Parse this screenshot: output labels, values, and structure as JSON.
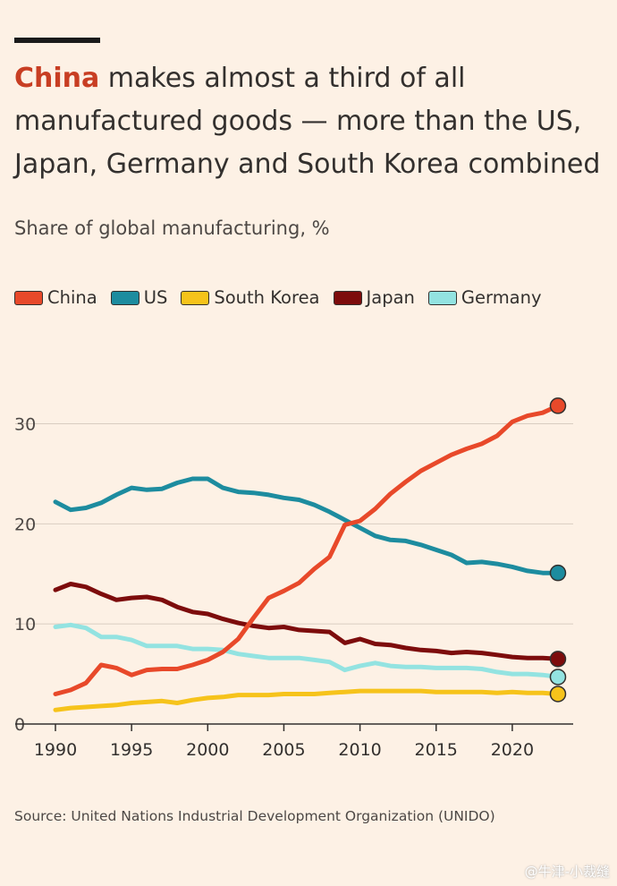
{
  "title_highlight": "China",
  "title_rest": " makes almost a third of all manufactured goods — more than the US, Japan, Germany and South Korea combined",
  "source": "Source: United Nations Industrial Development Organization (UNIDO)",
  "watermark": "@牛津-小裁缝",
  "chart_data": {
    "type": "line",
    "title": "China makes almost a third of all manufactured goods — more than the US, Japan, Germany and South Korea combined",
    "subtitle": "Share of global manufacturing, %",
    "xlabel": "",
    "ylabel": "",
    "xlim": [
      1990,
      2024
    ],
    "ylim": [
      0,
      33
    ],
    "xticks": [
      1990,
      1995,
      2000,
      2005,
      2010,
      2015,
      2020
    ],
    "yticks": [
      0,
      10,
      20,
      30
    ],
    "grid": "horizontal",
    "legend_position": "top",
    "x": [
      1990,
      1991,
      1992,
      1993,
      1994,
      1995,
      1996,
      1997,
      1998,
      1999,
      2000,
      2001,
      2002,
      2003,
      2004,
      2005,
      2006,
      2007,
      2008,
      2009,
      2010,
      2011,
      2012,
      2013,
      2014,
      2015,
      2016,
      2017,
      2018,
      2019,
      2020,
      2021,
      2022,
      2023
    ],
    "series": [
      {
        "name": "China",
        "color": "#e8492a",
        "values": [
          3.0,
          3.4,
          4.1,
          5.9,
          5.6,
          4.9,
          5.4,
          5.5,
          5.5,
          5.9,
          6.4,
          7.2,
          8.5,
          10.6,
          12.6,
          13.3,
          14.1,
          15.5,
          16.7,
          19.9,
          20.3,
          21.5,
          23.0,
          24.2,
          25.3,
          26.1,
          26.9,
          27.5,
          28.0,
          28.8,
          30.2,
          30.8,
          31.1,
          31.8
        ]
      },
      {
        "name": "US",
        "color": "#1d8c9f",
        "values": [
          22.2,
          21.4,
          21.6,
          22.1,
          22.9,
          23.6,
          23.4,
          23.5,
          24.1,
          24.5,
          24.5,
          23.6,
          23.2,
          23.1,
          22.9,
          22.6,
          22.4,
          21.9,
          21.2,
          20.4,
          19.6,
          18.8,
          18.4,
          18.3,
          17.9,
          17.4,
          16.9,
          16.1,
          16.2,
          16.0,
          15.7,
          15.3,
          15.1,
          15.1
        ]
      },
      {
        "name": "South Korea",
        "color": "#f6c31b",
        "values": [
          1.4,
          1.6,
          1.7,
          1.8,
          1.9,
          2.1,
          2.2,
          2.3,
          2.1,
          2.4,
          2.6,
          2.7,
          2.9,
          2.9,
          2.9,
          3.0,
          3.0,
          3.0,
          3.1,
          3.2,
          3.3,
          3.3,
          3.3,
          3.3,
          3.3,
          3.2,
          3.2,
          3.2,
          3.2,
          3.1,
          3.2,
          3.1,
          3.1,
          3.0
        ]
      },
      {
        "name": "Japan",
        "color": "#7d0c0c",
        "values": [
          13.4,
          14.0,
          13.7,
          13.0,
          12.4,
          12.6,
          12.7,
          12.4,
          11.7,
          11.2,
          11.0,
          10.5,
          10.1,
          9.8,
          9.6,
          9.7,
          9.4,
          9.3,
          9.2,
          8.1,
          8.5,
          8.0,
          7.9,
          7.6,
          7.4,
          7.3,
          7.1,
          7.2,
          7.1,
          6.9,
          6.7,
          6.6,
          6.6,
          6.5
        ]
      },
      {
        "name": "Germany",
        "color": "#93e3e1",
        "values": [
          9.7,
          9.9,
          9.6,
          8.7,
          8.7,
          8.4,
          7.8,
          7.8,
          7.8,
          7.5,
          7.5,
          7.4,
          7.0,
          6.8,
          6.6,
          6.6,
          6.6,
          6.4,
          6.2,
          5.4,
          5.8,
          6.1,
          5.8,
          5.7,
          5.7,
          5.6,
          5.6,
          5.6,
          5.5,
          5.2,
          5.0,
          5.0,
          4.9,
          4.7
        ]
      }
    ]
  }
}
